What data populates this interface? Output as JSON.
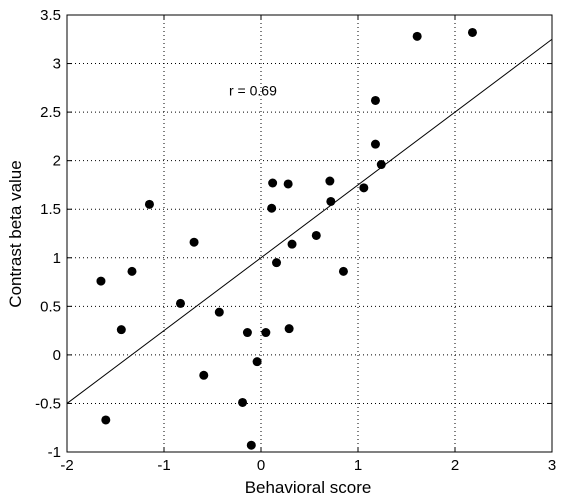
{
  "chart_data": {
    "type": "scatter",
    "title": "",
    "xlabel": "Behavioral score",
    "ylabel": "Contrast beta value",
    "xlim": [
      -2,
      3
    ],
    "ylim": [
      -1,
      3.5
    ],
    "xticks": [
      -2,
      -1,
      0,
      1,
      2,
      3
    ],
    "xtick_labels": [
      "-2",
      "-1",
      "0",
      "1",
      "2",
      "3"
    ],
    "yticks": [
      -1,
      -0.5,
      0,
      0.5,
      1,
      1.5,
      2,
      2.5,
      3,
      3.5
    ],
    "ytick_labels": [
      "-1",
      "-0.5",
      "0",
      "0.5",
      "1",
      "1.5",
      "2",
      "2.5",
      "3",
      "3.5"
    ],
    "grid": true,
    "points": [
      {
        "x": -1.6,
        "y": -0.67
      },
      {
        "x": -1.65,
        "y": 0.76
      },
      {
        "x": -1.44,
        "y": 0.26
      },
      {
        "x": -1.33,
        "y": 0.86
      },
      {
        "x": -1.15,
        "y": 1.55
      },
      {
        "x": -0.83,
        "y": 0.53
      },
      {
        "x": -0.69,
        "y": 1.16
      },
      {
        "x": -0.59,
        "y": -0.21
      },
      {
        "x": -0.43,
        "y": 0.44
      },
      {
        "x": -0.19,
        "y": -0.49
      },
      {
        "x": -0.14,
        "y": 0.23
      },
      {
        "x": -0.1,
        "y": -0.93
      },
      {
        "x": -0.04,
        "y": -0.07
      },
      {
        "x": 0.05,
        "y": 0.23
      },
      {
        "x": 0.11,
        "y": 1.51
      },
      {
        "x": 0.12,
        "y": 1.77
      },
      {
        "x": 0.16,
        "y": 0.95
      },
      {
        "x": 0.28,
        "y": 1.76
      },
      {
        "x": 0.29,
        "y": 0.27
      },
      {
        "x": 0.32,
        "y": 1.14
      },
      {
        "x": 0.57,
        "y": 1.23
      },
      {
        "x": 0.71,
        "y": 1.79
      },
      {
        "x": 0.72,
        "y": 1.58
      },
      {
        "x": 0.85,
        "y": 0.86
      },
      {
        "x": 1.06,
        "y": 1.72
      },
      {
        "x": 1.18,
        "y": 2.17
      },
      {
        "x": 1.18,
        "y": 2.62
      },
      {
        "x": 1.24,
        "y": 1.96
      },
      {
        "x": 1.61,
        "y": 3.28
      },
      {
        "x": 2.18,
        "y": 3.32
      }
    ],
    "fit_line": {
      "x": [
        -2,
        3
      ],
      "y": [
        -0.5,
        3.25
      ]
    },
    "annotations": [
      {
        "text": "r = 0.69",
        "x": -0.33,
        "y": 2.72
      }
    ]
  }
}
